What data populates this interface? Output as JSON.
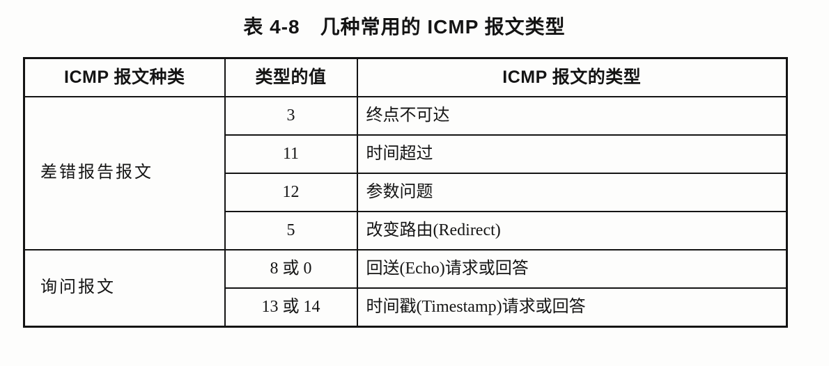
{
  "title": "表 4-8　几种常用的 ICMP 报文类型",
  "table": {
    "headers": {
      "category": "ICMP 报文种类",
      "type_value": "类型的值",
      "type_name": "ICMP 报文的类型"
    },
    "groups": [
      {
        "category": "差错报告报文",
        "rows": [
          {
            "type_value": "3",
            "type_name": "终点不可达"
          },
          {
            "type_value": "11",
            "type_name": "时间超过"
          },
          {
            "type_value": "12",
            "type_name": "参数问题"
          },
          {
            "type_value": "5",
            "type_name": "改变路由(Redirect)"
          }
        ]
      },
      {
        "category": "询问报文",
        "rows": [
          {
            "type_value": "8 或 0",
            "type_name": "回送(Echo)请求或回答"
          },
          {
            "type_value": "13 或 14",
            "type_name": "时间戳(Timestamp)请求或回答"
          }
        ]
      }
    ]
  },
  "colors": {
    "text": "#141414",
    "border": "#141414",
    "background": "#fdfdfc"
  }
}
